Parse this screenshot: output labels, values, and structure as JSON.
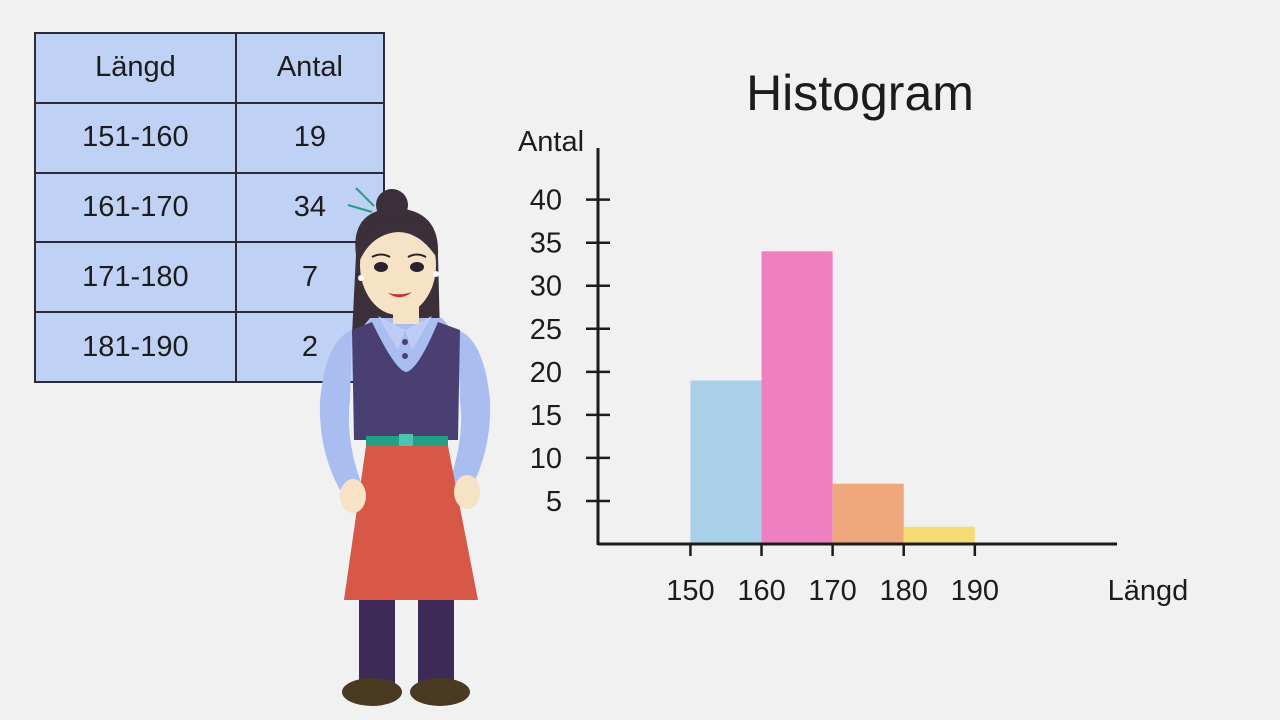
{
  "table": {
    "headers": [
      "Längd",
      "Antal"
    ],
    "rows": [
      [
        "151-160",
        "19"
      ],
      [
        "161-170",
        "34"
      ],
      [
        "171-180",
        "7"
      ],
      [
        "181-190",
        "2"
      ]
    ]
  },
  "chart_data": {
    "type": "bar",
    "title": "Histogram",
    "xlabel": "Längd",
    "ylabel": "Antal",
    "x_ticks": [
      150,
      160,
      170,
      180,
      190
    ],
    "y_ticks": [
      5,
      10,
      15,
      20,
      25,
      30,
      35,
      40
    ],
    "bins": [
      {
        "from": 150,
        "to": 160,
        "value": 19,
        "color": "#a9cfe9"
      },
      {
        "from": 160,
        "to": 170,
        "value": 34,
        "color": "#f07fc2"
      },
      {
        "from": 170,
        "to": 180,
        "value": 7,
        "color": "#eea87c"
      },
      {
        "from": 180,
        "to": 190,
        "value": 2,
        "color": "#f4db73"
      }
    ],
    "xlim": [
      137,
      210
    ],
    "ylim": [
      0,
      46
    ],
    "grid": false
  }
}
